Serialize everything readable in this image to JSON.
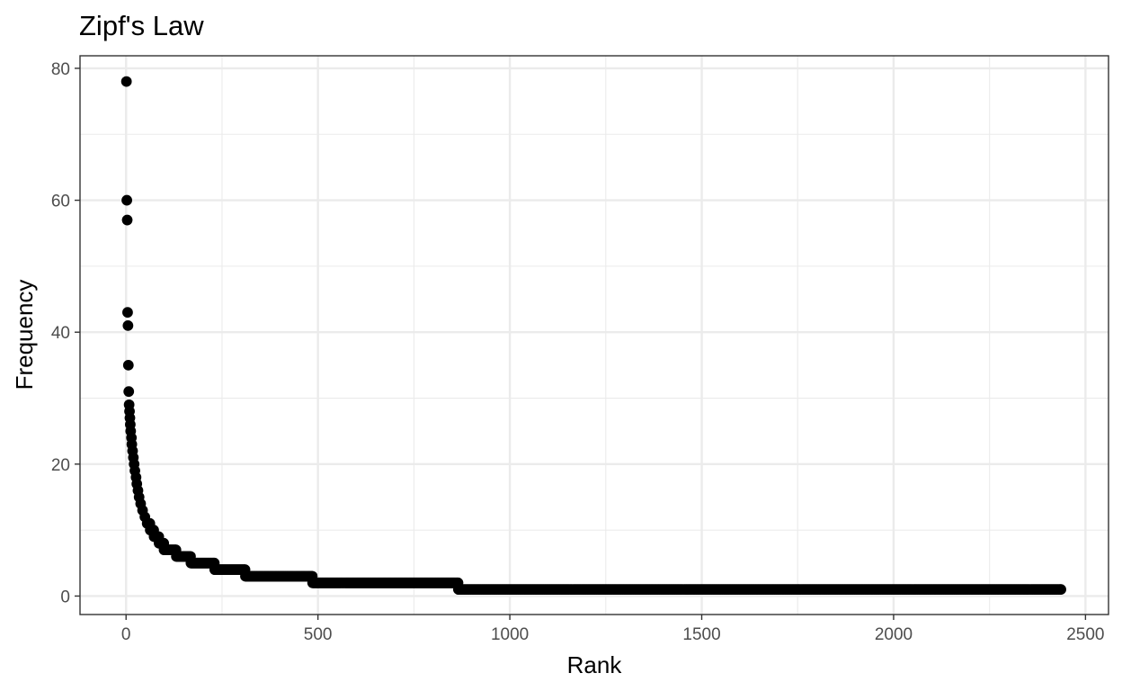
{
  "chart_data": {
    "type": "scatter",
    "title": "Zipf's Law",
    "xlabel": "Rank",
    "ylabel": "Frequency",
    "xlim": [
      -120,
      2560
    ],
    "ylim": [
      -2.8,
      81.9
    ],
    "x_ticks": [
      0,
      500,
      1000,
      1500,
      2000,
      2500
    ],
    "x_tick_labels": [
      "0",
      "500",
      "1000",
      "1500",
      "2000",
      "2500"
    ],
    "y_ticks": [
      0,
      20,
      40,
      60,
      80
    ],
    "y_tick_labels": [
      "0",
      "20",
      "40",
      "60",
      "80"
    ],
    "grid": true,
    "legend": "none",
    "point_color": "#000000",
    "top_points": [
      {
        "x": 1,
        "y": 78
      },
      {
        "x": 2,
        "y": 60
      },
      {
        "x": 3,
        "y": 57
      },
      {
        "x": 4,
        "y": 43
      },
      {
        "x": 5,
        "y": 41
      },
      {
        "x": 6,
        "y": 35
      },
      {
        "x": 7,
        "y": 31
      },
      {
        "x": 8,
        "y": 29
      },
      {
        "x": 9,
        "y": 28
      },
      {
        "x": 10,
        "y": 27
      },
      {
        "x": 11,
        "y": 26
      },
      {
        "x": 12,
        "y": 25
      },
      {
        "x": 14,
        "y": 24
      },
      {
        "x": 15,
        "y": 23
      },
      {
        "x": 17,
        "y": 22
      },
      {
        "x": 19,
        "y": 21
      },
      {
        "x": 21,
        "y": 20
      },
      {
        "x": 23,
        "y": 19
      },
      {
        "x": 26,
        "y": 18
      },
      {
        "x": 28,
        "y": 17
      },
      {
        "x": 31,
        "y": 16
      },
      {
        "x": 34,
        "y": 15
      },
      {
        "x": 38,
        "y": 14
      },
      {
        "x": 43,
        "y": 13
      },
      {
        "x": 49,
        "y": 12
      }
    ],
    "frequency_runs": [
      {
        "frequency": 11,
        "rank_from": 55,
        "rank_to": 62
      },
      {
        "frequency": 10,
        "rank_from": 63,
        "rank_to": 72
      },
      {
        "frequency": 9,
        "rank_from": 73,
        "rank_to": 85
      },
      {
        "frequency": 8,
        "rank_from": 86,
        "rank_to": 98
      },
      {
        "frequency": 7,
        "rank_from": 99,
        "rank_to": 130
      },
      {
        "frequency": 6,
        "rank_from": 131,
        "rank_to": 168
      },
      {
        "frequency": 5,
        "rank_from": 169,
        "rank_to": 230
      },
      {
        "frequency": 4,
        "rank_from": 231,
        "rank_to": 310
      },
      {
        "frequency": 3,
        "rank_from": 311,
        "rank_to": 485
      },
      {
        "frequency": 2,
        "rank_from": 486,
        "rank_to": 865
      },
      {
        "frequency": 1,
        "rank_from": 866,
        "rank_to": 2436
      }
    ]
  }
}
